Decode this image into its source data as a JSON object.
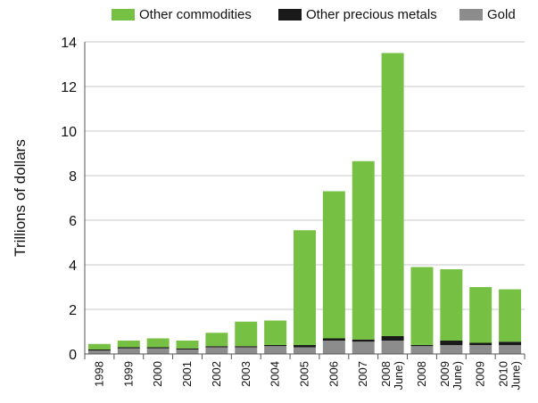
{
  "chart_data": {
    "type": "bar",
    "stacked": true,
    "categories": [
      "1998",
      "1999",
      "2000",
      "2001",
      "2002",
      "2003",
      "2004",
      "2005",
      "2006",
      "2007",
      "2008\nJune)",
      "2008",
      "2009\nJune)",
      "2009",
      "2010\nJune)"
    ],
    "series": [
      {
        "name": "Gold",
        "color": "#8c8c8c",
        "values": [
          0.15,
          0.25,
          0.25,
          0.2,
          0.3,
          0.3,
          0.35,
          0.3,
          0.6,
          0.55,
          0.6,
          0.35,
          0.4,
          0.4,
          0.4
        ]
      },
      {
        "name": "Other precious metals",
        "color": "#1a1a1a",
        "values": [
          0.05,
          0.05,
          0.05,
          0.05,
          0.05,
          0.05,
          0.05,
          0.1,
          0.1,
          0.1,
          0.2,
          0.05,
          0.2,
          0.1,
          0.15
        ]
      },
      {
        "name": "Other commodities",
        "color": "#76c043",
        "values": [
          0.25,
          0.3,
          0.4,
          0.35,
          0.6,
          1.1,
          1.1,
          5.15,
          6.6,
          8.0,
          12.7,
          3.5,
          3.2,
          2.5,
          2.35
        ]
      }
    ],
    "legend_order": [
      "Other commodities",
      "Other precious metals",
      "Gold"
    ],
    "xlabel": "",
    "ylabel": "Trillions of dollars",
    "ylim": [
      0,
      14
    ],
    "yticks": [
      0,
      2,
      4,
      6,
      8,
      10,
      12,
      14
    ],
    "grid": true,
    "legend_position": "top"
  }
}
